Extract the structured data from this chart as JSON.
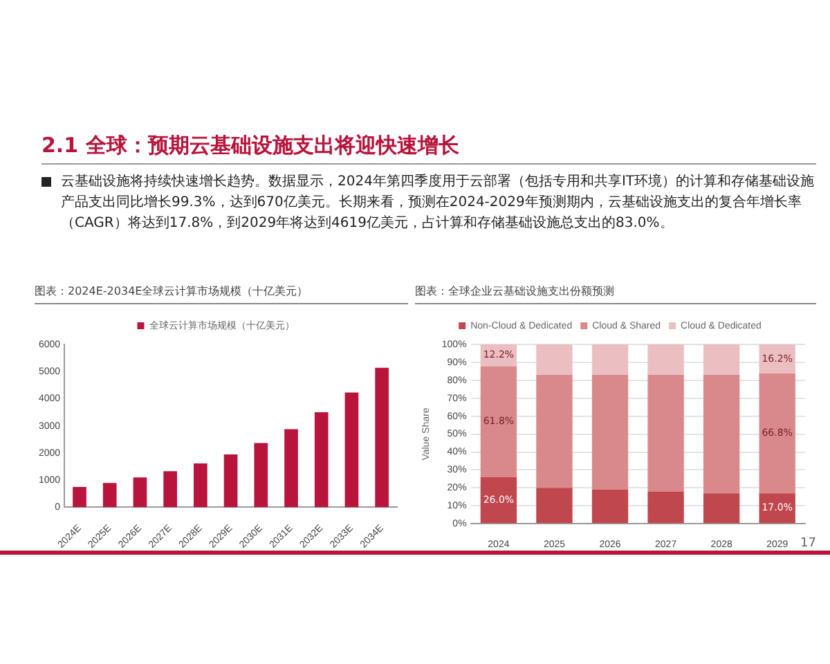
{
  "chart_data": [
    {
      "type": "bar",
      "title": "图表：2024E-2034E全球云计算市场规模（十亿美元）",
      "annotations": [
        "2.1 全球：预期云基础设施支出将迎快速增长",
        "云基础设施将持续快速增长趋势。数据显示，2024年第四季度用于云部署（包括专用和共享IT环境）的计算和存储基础设施产品支出同比增长99.3%，达到670亿美元。长期来看，预测在2024-2029年预测期内，云基础设施支出的复合年增长率（CAGR）将达到17.8%，到2029年将达到4619亿美元，占计算和存储基础设施总支出的83.0%。"
      ],
      "categories": [
        "2024E",
        "2025E",
        "2026E",
        "2027E",
        "2028E",
        "2029E",
        "2030E",
        "2031E",
        "2032E",
        "2033E",
        "2034E"
      ],
      "series": [
        {
          "name": "全球云计算市场规模（十亿美元）",
          "color": "#b8143c",
          "values": [
            750,
            900,
            1100,
            1330,
            1620,
            1950,
            2370,
            2880,
            3500,
            4230,
            5140
          ]
        }
      ],
      "ylim": [
        0,
        6000
      ],
      "yticks": [
        0,
        1000,
        2000,
        3000,
        4000,
        5000,
        6000
      ],
      "grid": false,
      "legend": "top"
    },
    {
      "type": "bar",
      "title": "图表：全球企业云基础设施支出份额预测",
      "ylabel": "Value Share",
      "annotations": [
        "17"
      ],
      "categories": [
        "2024",
        "2025",
        "2026",
        "2027",
        "2028",
        "2029"
      ],
      "stacked": true,
      "series": [
        {
          "name": "Non-Cloud & Dedicated",
          "color": "#c0474e",
          "values": [
            26.0,
            20,
            19,
            18,
            17,
            17.0
          ],
          "value_labels": [
            "26.0%",
            null,
            null,
            null,
            null,
            "17.0%"
          ]
        },
        {
          "name": "Cloud & Shared",
          "color": "#d9898c",
          "values": [
            61.8,
            63,
            64,
            65,
            66,
            66.8
          ],
          "value_labels": [
            "61.8%",
            null,
            null,
            null,
            null,
            "66.8%"
          ]
        },
        {
          "name": "Cloud & Dedicated",
          "color": "#ebbfc1",
          "values": [
            12.2,
            17,
            17,
            17,
            17,
            16.2
          ],
          "value_labels": [
            "12.2%",
            null,
            null,
            null,
            null,
            "16.2%"
          ]
        }
      ],
      "ylim": [
        0,
        100
      ],
      "yticks": [
        {
          "value": 0,
          "label": "0%"
        },
        {
          "value": 10,
          "label": "10%"
        },
        {
          "value": 20,
          "label": "20%"
        },
        {
          "value": 30,
          "label": "30%"
        },
        {
          "value": 40,
          "label": "40%"
        },
        {
          "value": 50,
          "label": "50%"
        },
        {
          "value": 60,
          "label": "60%"
        },
        {
          "value": 70,
          "label": "70%"
        },
        {
          "value": 80,
          "label": "80%"
        },
        {
          "value": 90,
          "label": "90%"
        },
        {
          "value": 100,
          "label": "100%"
        }
      ],
      "grid": "y",
      "legend": "top"
    }
  ]
}
